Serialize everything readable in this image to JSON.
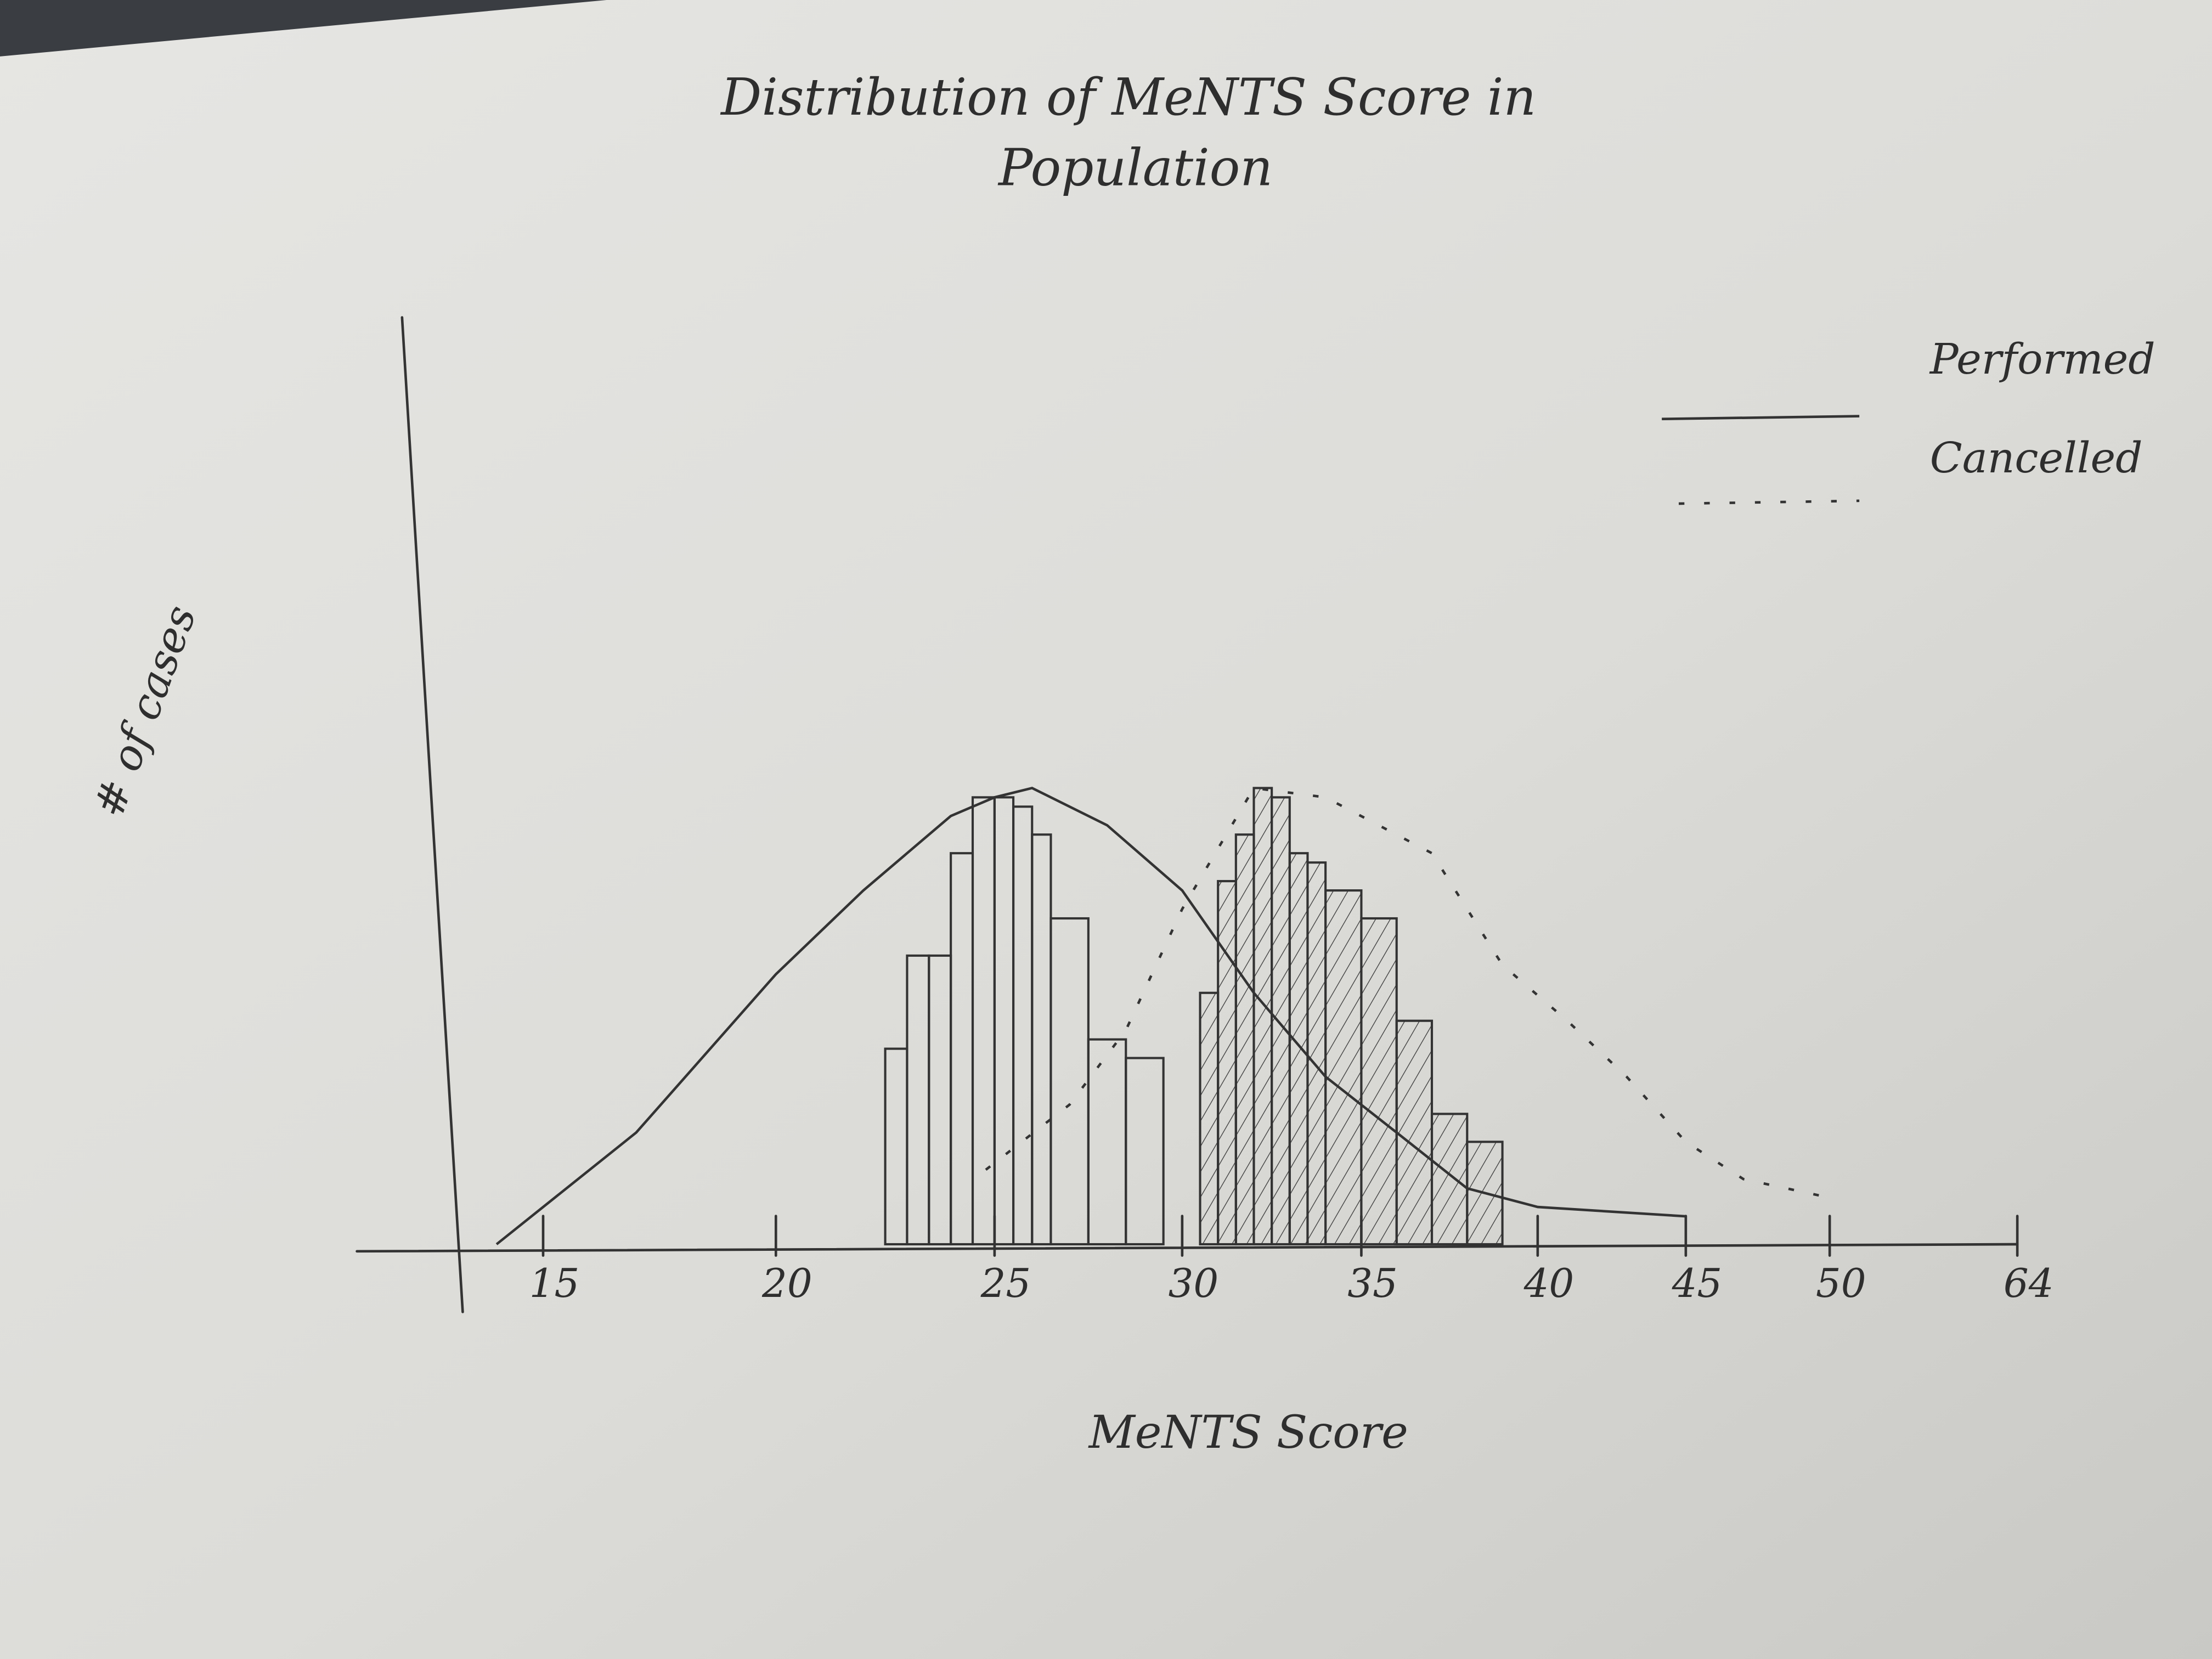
{
  "chart_data": {
    "type": "line",
    "title": [
      "Distribution of MeNTS Score in",
      "Population"
    ],
    "x_label": "MeNTS Score",
    "y_label": "# of cases",
    "xlim": [
      11,
      64
    ],
    "xticks": [
      15,
      20,
      25,
      30,
      35,
      40,
      45,
      50,
      64
    ],
    "ylim": [
      0,
      100
    ],
    "legend": "top-right",
    "series": [
      {
        "name": "Performed",
        "color": "#333333",
        "dash": "solid",
        "x": [
          14,
          17,
          20,
          22,
          24,
          25,
          26,
          28,
          30,
          32,
          34,
          36,
          38,
          40,
          45
        ],
        "values": [
          0,
          12,
          29,
          38,
          46,
          48,
          49,
          45,
          38,
          27,
          18,
          12,
          6,
          4,
          3
        ]
      },
      {
        "name": "Cancelled",
        "color": "#333333",
        "dash": "dotted",
        "x": [
          24.8,
          27,
          28.5,
          30,
          32,
          34,
          37,
          39,
          41,
          43,
          45,
          47,
          50
        ],
        "values": [
          8,
          15,
          23,
          36,
          49,
          48,
          42,
          30,
          24,
          18,
          11,
          7,
          5
        ]
      }
    ],
    "histograms": [
      {
        "color": "#333333",
        "hatch": false,
        "bins": [
          22.5,
          23,
          23.5,
          24,
          24.5,
          25,
          25.5,
          26,
          26.5,
          27.5,
          28.5,
          29.5
        ],
        "counts": [
          21,
          31,
          31,
          42,
          48,
          48,
          47,
          44,
          35,
          22,
          20
        ]
      },
      {
        "color": "#333333",
        "hatch": true,
        "bins": [
          30.5,
          31,
          31.5,
          32,
          32.5,
          33,
          33.5,
          34,
          35,
          36,
          37,
          38,
          39
        ],
        "counts": [
          27,
          39,
          44,
          49,
          48,
          42,
          41,
          38,
          35,
          24,
          14,
          11
        ]
      }
    ]
  }
}
